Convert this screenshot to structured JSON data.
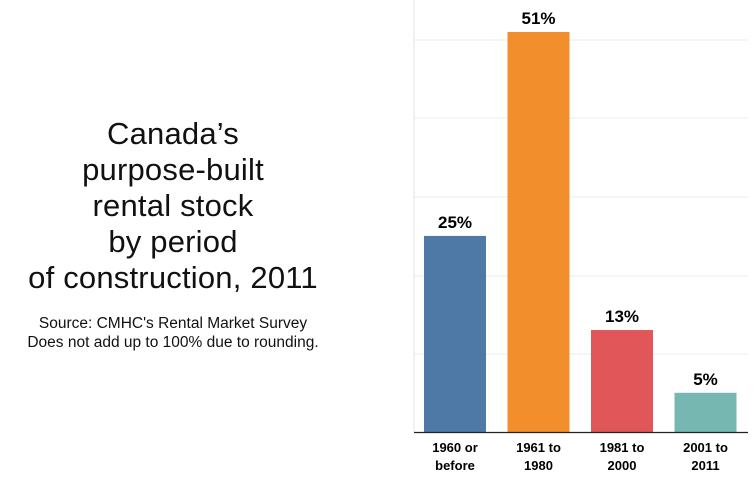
{
  "title_lines": [
    "Canada’s",
    "purpose-built",
    "rental stock",
    "by period",
    "of construction, 2011"
  ],
  "source_lines": [
    "Source: CMHC's Rental Market Survey",
    "Does not add up to 100% due to rounding."
  ],
  "chart_data": {
    "type": "bar",
    "title": "Canada’s purpose-built rental stock by period of construction, 2011",
    "categories": [
      [
        "1960 or",
        "before"
      ],
      [
        "1961 to",
        "1980"
      ],
      [
        "1981 to",
        "2000"
      ],
      [
        "2001 to",
        "2011"
      ]
    ],
    "values": [
      25,
      51,
      13,
      5
    ],
    "value_labels": [
      "25%",
      "51%",
      "13%",
      "5%"
    ],
    "colors": [
      "#4e79a7",
      "#f28e2b",
      "#e15759",
      "#76b7b2"
    ],
    "ylim": [
      0,
      51
    ],
    "grid": true,
    "legend": "none"
  }
}
